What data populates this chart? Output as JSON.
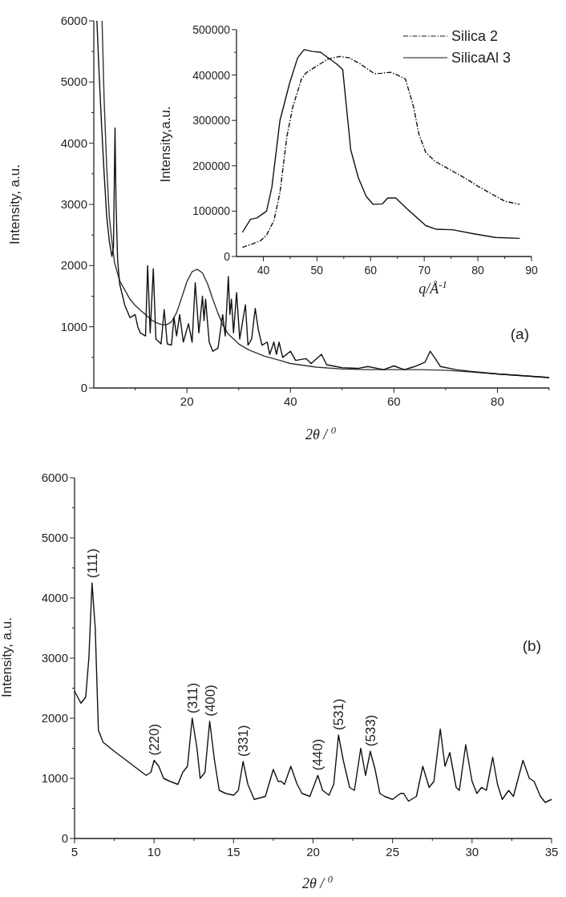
{
  "chart_data": [
    {
      "type": "line",
      "xlabel": "2θ / $^{0}$",
      "ylabel": "Intensity, a.u.",
      "xlim": [
        2,
        90
      ],
      "ylim": [
        0,
        6000
      ],
      "xticks": [
        {
          "value": 10,
          "label": null
        },
        20,
        {
          "value": 30,
          "label": null
        },
        40,
        {
          "value": 50,
          "label": null
        },
        60,
        {
          "value": 70,
          "label": null
        },
        80,
        {
          "value": 90,
          "label": null
        }
      ],
      "yticks": [
        0,
        {
          "value": 500,
          "label": null
        },
        1000,
        {
          "value": 1500,
          "label": null
        },
        2000,
        {
          "value": 2500,
          "label": null
        },
        3000,
        {
          "value": 3500,
          "label": null
        },
        4000,
        {
          "value": 4500,
          "label": null
        },
        5000,
        {
          "value": 5500,
          "label": null
        },
        6000
      ],
      "annotations": [
        "(a)"
      ],
      "legend": false,
      "series": [
        {
          "color": "#333333",
          "x": [
            3.6,
            4,
            4.5,
            5,
            5.5,
            6,
            6.5,
            7,
            8,
            9,
            10,
            11,
            12,
            13,
            14,
            15,
            16,
            17,
            18,
            19,
            20,
            21,
            22,
            23,
            24,
            25,
            26,
            27,
            28,
            30,
            32,
            35,
            38,
            40,
            45,
            50,
            55,
            60,
            65,
            70,
            75,
            80,
            85,
            90
          ],
          "values": [
            6000,
            4700,
            3600,
            2800,
            2400,
            2050,
            1900,
            1750,
            1600,
            1450,
            1350,
            1270,
            1200,
            1120,
            1070,
            1040,
            1030,
            1080,
            1230,
            1480,
            1740,
            1900,
            1940,
            1880,
            1700,
            1450,
            1220,
            1020,
            880,
            720,
            620,
            520,
            450,
            400,
            340,
            310,
            300,
            300,
            300,
            290,
            260,
            230,
            200,
            170
          ]
        },
        {
          "color": "#111111",
          "x": [
            2.6,
            3,
            3.5,
            4,
            4.5,
            5,
            5.5,
            5.8,
            6.1,
            6.3,
            6.6,
            7,
            8,
            9,
            10,
            10.5,
            11,
            12,
            12.4,
            12.9,
            13.5,
            14,
            15,
            15.6,
            16.2,
            17,
            17.5,
            18,
            18.6,
            19.3,
            20.3,
            21,
            21.6,
            22.3,
            23,
            23.3,
            23.6,
            24.3,
            25,
            26,
            26.9,
            27.4,
            28,
            28.3,
            28.6,
            29,
            29.6,
            30.2,
            31.3,
            31.8,
            32.5,
            33.2,
            33.8,
            34.5,
            35.5,
            36,
            36.8,
            37.3,
            37.8,
            38.5,
            40,
            41,
            43,
            44,
            46,
            47,
            50,
            53,
            55,
            58,
            60,
            62,
            64,
            66,
            67,
            68,
            69,
            72,
            75,
            80,
            85,
            90
          ],
          "values": [
            6000,
            5200,
            4300,
            3500,
            2800,
            2400,
            2150,
            2300,
            4250,
            3000,
            2100,
            1700,
            1350,
            1150,
            1200,
            1000,
            900,
            850,
            2000,
            900,
            1950,
            800,
            720,
            1280,
            720,
            700,
            1150,
            850,
            1200,
            750,
            1050,
            750,
            1720,
            900,
            1500,
            1100,
            1450,
            750,
            600,
            650,
            1200,
            850,
            1820,
            1200,
            1450,
            900,
            1560,
            800,
            1360,
            700,
            800,
            1300,
            950,
            700,
            750,
            550,
            750,
            550,
            750,
            500,
            600,
            450,
            480,
            400,
            550,
            380,
            330,
            320,
            350,
            300,
            360,
            300,
            350,
            420,
            600,
            480,
            350,
            300,
            270,
            230,
            200,
            170
          ]
        }
      ]
    },
    {
      "type": "line",
      "xlabel": "q/Å$^{-1}$",
      "ylabel": "Intensity,a.u.",
      "xlim": [
        35,
        90
      ],
      "ylim": [
        0,
        500000
      ],
      "xticks": [
        40,
        {
          "value": 45,
          "label": null
        },
        50,
        {
          "value": 55,
          "label": null
        },
        60,
        {
          "value": 65,
          "label": null
        },
        70,
        {
          "value": 75,
          "label": null
        },
        80,
        {
          "value": 85,
          "label": null
        },
        90
      ],
      "yticks": [
        0,
        {
          "value": 50000,
          "label": null
        },
        100000,
        {
          "value": 150000,
          "label": null
        },
        200000,
        {
          "value": 250000,
          "label": null
        },
        300000,
        {
          "value": 350000,
          "label": null
        },
        400000,
        {
          "value": 450000,
          "label": null
        },
        500000
      ],
      "legend": "top right",
      "series": [
        {
          "name": "Silica 2",
          "color": "#111111",
          "line_style": "dashed",
          "x": [
            36.1,
            38,
            39.5,
            40.6,
            42,
            43.1,
            44.4,
            45.5,
            47.1,
            48,
            50,
            52,
            54.2,
            56,
            58,
            60.7,
            62,
            63.7,
            65,
            66.5,
            68,
            69,
            70.3,
            72,
            75,
            78,
            80,
            83,
            85,
            87.8
          ],
          "values": [
            20000,
            28000,
            35000,
            47000,
            80000,
            141000,
            265000,
            330000,
            391000,
            405000,
            420000,
            435000,
            441000,
            438000,
            425000,
            403000,
            404000,
            406000,
            400000,
            391000,
            330000,
            270000,
            229000,
            210000,
            190000,
            170000,
            155000,
            135000,
            122000,
            115000
          ]
        },
        {
          "name": "SilicaAl 3",
          "color": "#111111",
          "line_style": "solid",
          "x": [
            36.1,
            37.6,
            38.8,
            40.6,
            41.6,
            43.1,
            44.9,
            46.4,
            47.6,
            49.1,
            50.7,
            52.4,
            53.7,
            54.8,
            56.3,
            57.7,
            59.2,
            60.5,
            62.2,
            63.2,
            64.7,
            66.7,
            70.3,
            72.3,
            75.3,
            79.3,
            83.3,
            87.8
          ],
          "values": [
            53000,
            82000,
            85000,
            100000,
            153000,
            300000,
            382000,
            438000,
            456000,
            452000,
            450000,
            435000,
            424000,
            412000,
            235000,
            174000,
            132000,
            115000,
            116000,
            129000,
            129000,
            106000,
            68000,
            60000,
            59000,
            50000,
            42000,
            40000
          ]
        }
      ]
    },
    {
      "type": "line",
      "xlabel": "2θ / $^{0}$",
      "ylabel": "Intensity, a.u.",
      "xlim": [
        5,
        35
      ],
      "ylim": [
        0,
        6000
      ],
      "xticks": [
        5,
        {
          "value": 7.5,
          "label": null
        },
        10,
        {
          "value": 12.5,
          "label": null
        },
        15,
        {
          "value": 17.5,
          "label": null
        },
        20,
        {
          "value": 22.5,
          "label": null
        },
        25,
        {
          "value": 27.5,
          "label": null
        },
        30,
        {
          "value": 32.5,
          "label": null
        },
        35
      ],
      "yticks": [
        0,
        {
          "value": 500,
          "label": null
        },
        1000,
        {
          "value": 1500,
          "label": null
        },
        2000,
        {
          "value": 2500,
          "label": null
        },
        3000,
        {
          "value": 3500,
          "label": null
        },
        4000,
        {
          "value": 4500,
          "label": null
        },
        5000,
        {
          "value": 5500,
          "label": null
        },
        6000
      ],
      "annotations": [
        "(b)",
        {
          "text": "(111)",
          "x": 6.1,
          "y": 4250
        },
        {
          "text": "(220)",
          "x": 10,
          "y": 1300
        },
        {
          "text": "(311)",
          "x": 12.4,
          "y": 2000
        },
        {
          "text": "(400)",
          "x": 13.5,
          "y": 1950
        },
        {
          "text": "(331)",
          "x": 15.6,
          "y": 1280
        },
        {
          "text": "(440)",
          "x": 20.3,
          "y": 1050
        },
        {
          "text": "(531)",
          "x": 21.6,
          "y": 1720
        },
        {
          "text": "(533)",
          "x": 23.6,
          "y": 1450
        }
      ],
      "series": [
        {
          "color": "#111111",
          "x": [
            5,
            5.4,
            5.7,
            5.9,
            6.1,
            6.3,
            6.5,
            6.8,
            7.5,
            8,
            8.5,
            9,
            9.5,
            9.8,
            10,
            10.3,
            10.6,
            11,
            11.5,
            11.8,
            12.1,
            12.4,
            12.7,
            12.9,
            13.2,
            13.5,
            13.8,
            14.1,
            14.5,
            15,
            15.3,
            15.6,
            15.9,
            16.3,
            17,
            17.5,
            17.8,
            18,
            18.2,
            18.6,
            19,
            19.3,
            19.8,
            20.3,
            20.6,
            21,
            21.3,
            21.6,
            21.9,
            22.3,
            22.6,
            23,
            23.3,
            23.6,
            23.9,
            24.2,
            24.5,
            25,
            25.5,
            25.7,
            26,
            26.5,
            26.9,
            27.3,
            27.6,
            28,
            28.3,
            28.6,
            29,
            29.2,
            29.6,
            30,
            30.3,
            30.6,
            30.9,
            31.3,
            31.6,
            31.9,
            32.3,
            32.6,
            33.2,
            33.6,
            33.9,
            34.3,
            34.6,
            35
          ],
          "values": [
            2450,
            2250,
            2350,
            3000,
            4250,
            3500,
            1800,
            1600,
            1450,
            1350,
            1250,
            1150,
            1050,
            1100,
            1300,
            1200,
            1000,
            950,
            900,
            1100,
            1200,
            2000,
            1500,
            1000,
            1100,
            1950,
            1300,
            800,
            750,
            720,
            800,
            1280,
            900,
            650,
            700,
            1150,
            950,
            950,
            900,
            1200,
            900,
            750,
            700,
            1050,
            800,
            720,
            900,
            1720,
            1300,
            850,
            800,
            1500,
            1050,
            1450,
            1150,
            750,
            700,
            650,
            750,
            750,
            620,
            700,
            1200,
            850,
            950,
            1820,
            1200,
            1430,
            850,
            800,
            1560,
            950,
            750,
            850,
            800,
            1350,
            900,
            650,
            800,
            700,
            1300,
            1000,
            950,
            700,
            600,
            650
          ]
        }
      ]
    }
  ]
}
